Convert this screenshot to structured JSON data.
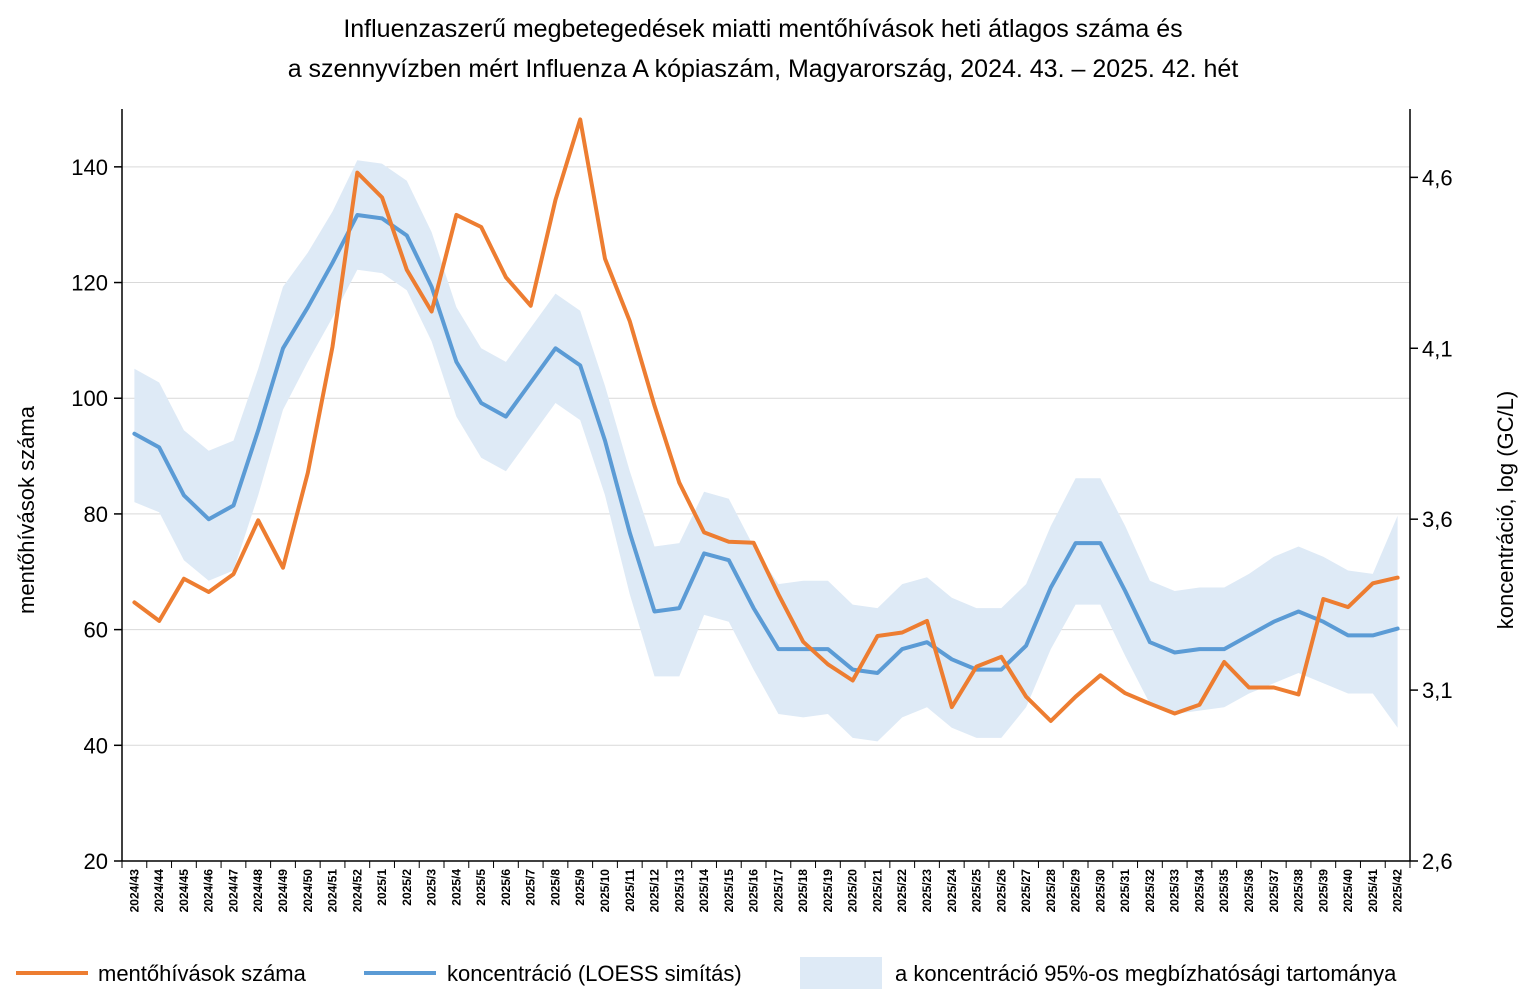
{
  "chart_data": {
    "type": "line",
    "title": [
      "Influenzaszerű megbetegedések miatti mentőhívások heti átlagos száma és",
      "a szennyvízben mért Influenza A kópiaszám, Magyarország, 2024. 43. – 2025. 42. hét"
    ],
    "ylabel_left": "mentőhívások száma",
    "ylabel_right": "koncentráció, log (GC/L)",
    "y_left": {
      "min": 20,
      "max": 150,
      "ticks": [
        "20",
        "40",
        "60",
        "80",
        "100",
        "120",
        "140"
      ],
      "tick_values": [
        20,
        40,
        60,
        80,
        100,
        120,
        140
      ]
    },
    "y_right": {
      "min": 2.6,
      "max": 4.8,
      "ticks": [
        "2,6",
        "3,1",
        "3,6",
        "4,1",
        "4,6"
      ],
      "tick_values": [
        2.6,
        3.1,
        3.6,
        4.1,
        4.6
      ]
    },
    "categories": [
      "2024/43",
      "2024/44",
      "2024/45",
      "2024/46",
      "2024/47",
      "2024/48",
      "2024/49",
      "2024/50",
      "2024/51",
      "2024/52",
      "2025/1",
      "2025/2",
      "2025/3",
      "2025/4",
      "2025/5",
      "2025/6",
      "2025/7",
      "2025/8",
      "2025/9",
      "2025/10",
      "2025/11",
      "2025/12",
      "2025/13",
      "2025/14",
      "2025/15",
      "2025/16",
      "2025/17",
      "2025/18",
      "2025/19",
      "2025/20",
      "2025/21",
      "2025/22",
      "2025/23",
      "2025/24",
      "2025/25",
      "2025/26",
      "2025/27",
      "2025/28",
      "2025/29",
      "2025/30",
      "2025/31",
      "2025/32",
      "2025/33",
      "2025/34",
      "2025/35",
      "2025/36",
      "2025/37",
      "2025/38",
      "2025/39",
      "2025/40",
      "2025/41",
      "2025/42"
    ],
    "series": [
      {
        "name": "mentőhívások száma",
        "axis": "left",
        "color": "#ED7D31",
        "values": [
          64.7,
          61.5,
          68.8,
          66.5,
          69.6,
          78.9,
          70.7,
          87.1,
          108.9,
          139.0,
          134.7,
          122.2,
          115.0,
          131.7,
          129.6,
          120.9,
          116.0,
          134.3,
          148.2,
          124.1,
          113.3,
          98.7,
          85.4,
          76.8,
          75.2,
          75.0,
          66.1,
          57.9,
          54.0,
          51.2,
          58.9,
          59.5,
          61.5,
          46.6,
          53.6,
          55.3,
          48.4,
          44.2,
          48.4,
          52.1,
          49.0,
          47.2,
          45.5,
          47.0,
          54.4,
          50.0,
          50.0,
          48.8,
          65.3,
          63.9,
          68.0,
          69.0
        ]
      },
      {
        "name": "koncentráció (LOESS simítás)",
        "axis": "right",
        "color": "#5B9BD5",
        "values": [
          3.85,
          3.81,
          3.67,
          3.6,
          3.64,
          3.86,
          4.1,
          4.22,
          4.35,
          4.49,
          4.48,
          4.43,
          4.28,
          4.06,
          3.94,
          3.9,
          4.0,
          4.1,
          4.05,
          3.83,
          3.56,
          3.33,
          3.34,
          3.5,
          3.48,
          3.34,
          3.22,
          3.22,
          3.22,
          3.16,
          3.15,
          3.22,
          3.24,
          3.19,
          3.16,
          3.16,
          3.23,
          3.4,
          3.53,
          3.53,
          3.39,
          3.24,
          3.21,
          3.22,
          3.22,
          3.26,
          3.3,
          3.33,
          3.3,
          3.26,
          3.26,
          3.28
        ]
      }
    ],
    "band": {
      "name": "a koncentráció 95%-os megbízhatósági tartománya",
      "axis": "right",
      "color": "#DEEAF6",
      "upper": [
        4.04,
        4.0,
        3.86,
        3.8,
        3.83,
        4.04,
        4.28,
        4.38,
        4.5,
        4.65,
        4.64,
        4.59,
        4.44,
        4.22,
        4.1,
        4.06,
        4.16,
        4.26,
        4.21,
        3.99,
        3.74,
        3.52,
        3.53,
        3.68,
        3.66,
        3.52,
        3.41,
        3.42,
        3.42,
        3.35,
        3.34,
        3.41,
        3.43,
        3.37,
        3.34,
        3.34,
        3.41,
        3.58,
        3.72,
        3.72,
        3.58,
        3.42,
        3.39,
        3.4,
        3.4,
        3.44,
        3.49,
        3.52,
        3.49,
        3.45,
        3.44,
        3.61
      ],
      "lower": [
        3.65,
        3.62,
        3.48,
        3.42,
        3.45,
        3.67,
        3.92,
        4.06,
        4.19,
        4.33,
        4.32,
        4.27,
        4.12,
        3.9,
        3.78,
        3.74,
        3.84,
        3.94,
        3.89,
        3.67,
        3.38,
        3.14,
        3.14,
        3.32,
        3.3,
        3.16,
        3.03,
        3.02,
        3.03,
        2.96,
        2.95,
        3.02,
        3.05,
        2.99,
        2.96,
        2.96,
        3.05,
        3.22,
        3.35,
        3.35,
        3.2,
        3.06,
        3.03,
        3.04,
        3.05,
        3.09,
        3.12,
        3.15,
        3.12,
        3.09,
        3.09,
        2.99
      ]
    },
    "gridlines": true,
    "legend_position": "bottom"
  }
}
